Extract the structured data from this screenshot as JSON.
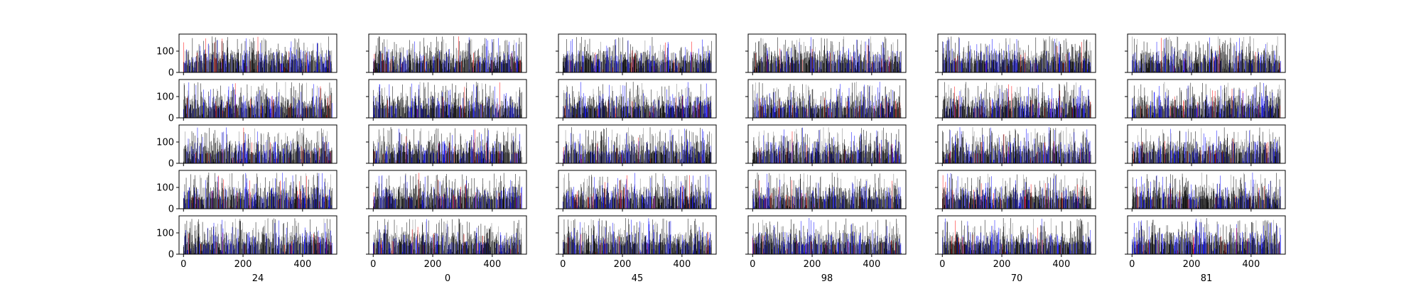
{
  "chart_data": {
    "type": "bar",
    "layout": {
      "rows": 5,
      "cols": 6,
      "sharex": true,
      "sharey": true
    },
    "x_range": [
      0,
      499
    ],
    "xlim": [
      -15,
      515
    ],
    "ylim": [
      0,
      180
    ],
    "x_ticks": [
      0,
      200,
      400
    ],
    "x_tick_labels": [
      "0",
      "200",
      "400"
    ],
    "y_ticks": [
      0,
      100
    ],
    "y_tick_labels": [
      "0",
      "100"
    ],
    "column_xlabels": [
      "24",
      "0",
      "45",
      "98",
      "70",
      "81"
    ],
    "bar_colors": [
      "#000000",
      "#808080",
      "#0000ff",
      "#ff0000"
    ],
    "bar_value_range": [
      0,
      170
    ],
    "note_values": "Each of the 30 panels shows 500 bars with values roughly between 0 and 170; exact per-bar values are not legible and are represented by a seeded distribution in the drawing script."
  }
}
